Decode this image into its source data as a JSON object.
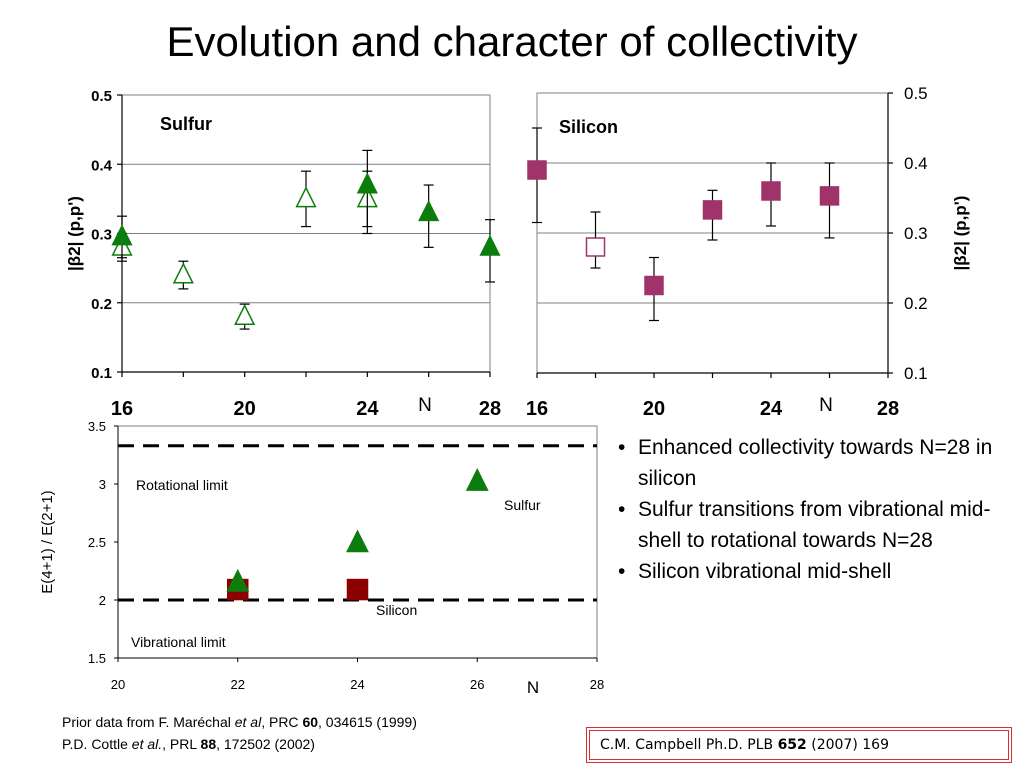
{
  "title": "Evolution and character of collectivity",
  "bullets": [
    "Enhanced collectivity towards N=28 in silicon",
    "Sulfur transitions from vibrational mid-shell to rotational towards N=28",
    "Silicon vibrational mid-shell"
  ],
  "references": {
    "line1": {
      "pre": "Prior data from F. Maréchal ",
      "em": "et al",
      "mid": ", PRC ",
      "bold": "60",
      "post": ", 034615 (1999)"
    },
    "line2": {
      "pre": "P.D. Cottle ",
      "em": "et al.",
      "mid": ", PRL ",
      "bold": "88",
      "post": ", 172502 (2002)"
    }
  },
  "citation": {
    "pre": "C.M. Campbell Ph.D. PLB ",
    "bold": "652",
    "post": " (2007) 169"
  },
  "colors": {
    "sulfur": "#0c7c0c",
    "silicon": "#a0336a",
    "silicon_ratio": "#8b0000",
    "gridline": "#808080"
  },
  "chart_data": [
    {
      "type": "scatter",
      "panel": "sulfur",
      "label": "Sulfur",
      "xlabel": "N",
      "ylabel": "|β2| (p,p')",
      "xlim": [
        16,
        28
      ],
      "ylim": [
        0.1,
        0.5
      ],
      "xticks": [
        16,
        20,
        24,
        28
      ],
      "yticks": [
        0.1,
        0.2,
        0.3,
        0.4,
        0.5
      ],
      "grid": true,
      "series": [
        {
          "marker": "triangle-open",
          "points": [
            {
              "x": 16,
              "y": 0.28,
              "err": [
                0.02,
                0.02
              ]
            },
            {
              "x": 18,
              "y": 0.24,
              "err": [
                0.02,
                0.02
              ]
            },
            {
              "x": 20,
              "y": 0.18,
              "err": [
                0.018,
                0.018
              ]
            },
            {
              "x": 22,
              "y": 0.35,
              "err": [
                0.04,
                0.04
              ]
            },
            {
              "x": 24,
              "y": 0.35,
              "err": [
                0.04,
                0.04
              ]
            }
          ]
        },
        {
          "marker": "triangle-filled",
          "points": [
            {
              "x": 16,
              "y": 0.295,
              "err": [
                0.03,
                0.03
              ]
            },
            {
              "x": 24,
              "y": 0.37,
              "err": [
                0.07,
                0.05
              ]
            },
            {
              "x": 26,
              "y": 0.33,
              "err": [
                0.05,
                0.04
              ]
            },
            {
              "x": 28,
              "y": 0.28,
              "err": [
                0.05,
                0.04
              ]
            }
          ]
        }
      ]
    },
    {
      "type": "scatter",
      "panel": "silicon",
      "label": "Silicon",
      "xlabel": "N",
      "ylabel": "|β2| (p,p')",
      "xlim": [
        16,
        28
      ],
      "ylim": [
        0.1,
        0.5
      ],
      "xticks": [
        16,
        20,
        24,
        28
      ],
      "yticks": [
        0.1,
        0.2,
        0.3,
        0.4,
        0.5
      ],
      "grid": true,
      "series": [
        {
          "marker": "square-open",
          "points": [
            {
              "x": 18,
              "y": 0.28,
              "err": [
                0.03,
                0.05
              ]
            }
          ]
        },
        {
          "marker": "square-filled",
          "points": [
            {
              "x": 16,
              "y": 0.39,
              "err": [
                0.075,
                0.06
              ]
            },
            {
              "x": 20,
              "y": 0.225,
              "err": [
                0.05,
                0.04
              ]
            },
            {
              "x": 22,
              "y": 0.333,
              "err": [
                0.043,
                0.028
              ]
            },
            {
              "x": 24,
              "y": 0.36,
              "err": [
                0.05,
                0.04
              ]
            },
            {
              "x": 26,
              "y": 0.353,
              "err": [
                0.06,
                0.047
              ]
            }
          ]
        }
      ]
    },
    {
      "type": "scatter",
      "panel": "ratio",
      "xlabel": "N",
      "ylabel": "E(4+1) / E(2+1)",
      "xlim": [
        20,
        28
      ],
      "ylim": [
        1.5,
        3.5
      ],
      "xticks": [
        20,
        22,
        24,
        26,
        28
      ],
      "yticks": [
        1.5,
        2,
        2.5,
        3,
        3.5
      ],
      "grid": false,
      "reference_lines": [
        {
          "y": 3.33,
          "label": "Rotational limit"
        },
        {
          "y": 2.0,
          "label": "Vibrational limit"
        }
      ],
      "series": [
        {
          "name": "Sulfur",
          "marker": "triangle-filled",
          "points": [
            {
              "x": 22,
              "y": 2.15
            },
            {
              "x": 24,
              "y": 2.49
            },
            {
              "x": 26,
              "y": 3.02
            }
          ]
        },
        {
          "name": "Silicon",
          "marker": "square-filled",
          "points": [
            {
              "x": 22,
              "y": 2.09
            },
            {
              "x": 24,
              "y": 2.09
            }
          ]
        }
      ]
    }
  ]
}
